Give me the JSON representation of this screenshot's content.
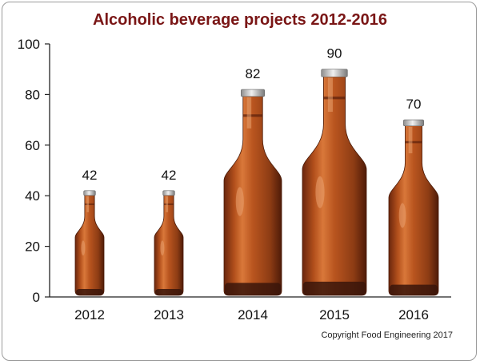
{
  "chart_data": {
    "type": "bar",
    "title": "Alcoholic beverage projects 2012-2016",
    "categories": [
      "2012",
      "2013",
      "2014",
      "2015",
      "2016"
    ],
    "values": [
      42,
      42,
      82,
      90,
      70
    ],
    "data_labels": [
      "42",
      "42",
      "82",
      "90",
      "70"
    ],
    "xlabel": "",
    "ylabel": "",
    "ylim": [
      0,
      100
    ],
    "yticks": [
      "0",
      "20",
      "40",
      "60",
      "80",
      "100"
    ],
    "grid": false,
    "legend": "none",
    "bar_style": "beer bottles",
    "colors": {
      "title": "#7a1616",
      "bottle_body": "#b9551f",
      "bottle_dark": "#3a150a",
      "bottle_highlight": "#e9a070",
      "cap": "#c9c9c9"
    }
  },
  "footer": {
    "copyright": "Copyright Food Engineering 2017"
  }
}
